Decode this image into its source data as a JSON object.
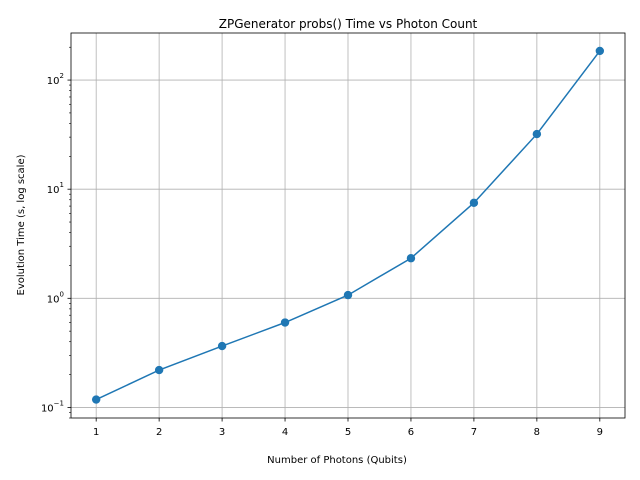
{
  "chart_data": {
    "type": "line",
    "title": "ZPGenerator probs() Time vs Photon Count",
    "xlabel": "Number of Photons (Qubits)",
    "ylabel": "Evolution Time (s, log scale)",
    "yscale": "log",
    "grid": true,
    "x": [
      1,
      2,
      3,
      4,
      5,
      6,
      7,
      8,
      9
    ],
    "x_ticks": [
      "1",
      "2",
      "3",
      "4",
      "5",
      "6",
      "7",
      "8",
      "9"
    ],
    "y_ticks": [
      {
        "value": 0.1,
        "base": "10",
        "exp": "−1"
      },
      {
        "value": 1,
        "base": "10",
        "exp": "0"
      },
      {
        "value": 10,
        "base": "10",
        "exp": "1"
      },
      {
        "value": 100,
        "base": "10",
        "exp": "2"
      }
    ],
    "xlim": [
      0.6,
      9.4
    ],
    "ylim": [
      0.08,
      270
    ],
    "series": [
      {
        "color": "#1f77b4",
        "marker": "circle",
        "values": [
          0.118,
          0.22,
          0.365,
          0.6,
          1.07,
          2.33,
          7.5,
          32,
          185
        ]
      }
    ]
  }
}
